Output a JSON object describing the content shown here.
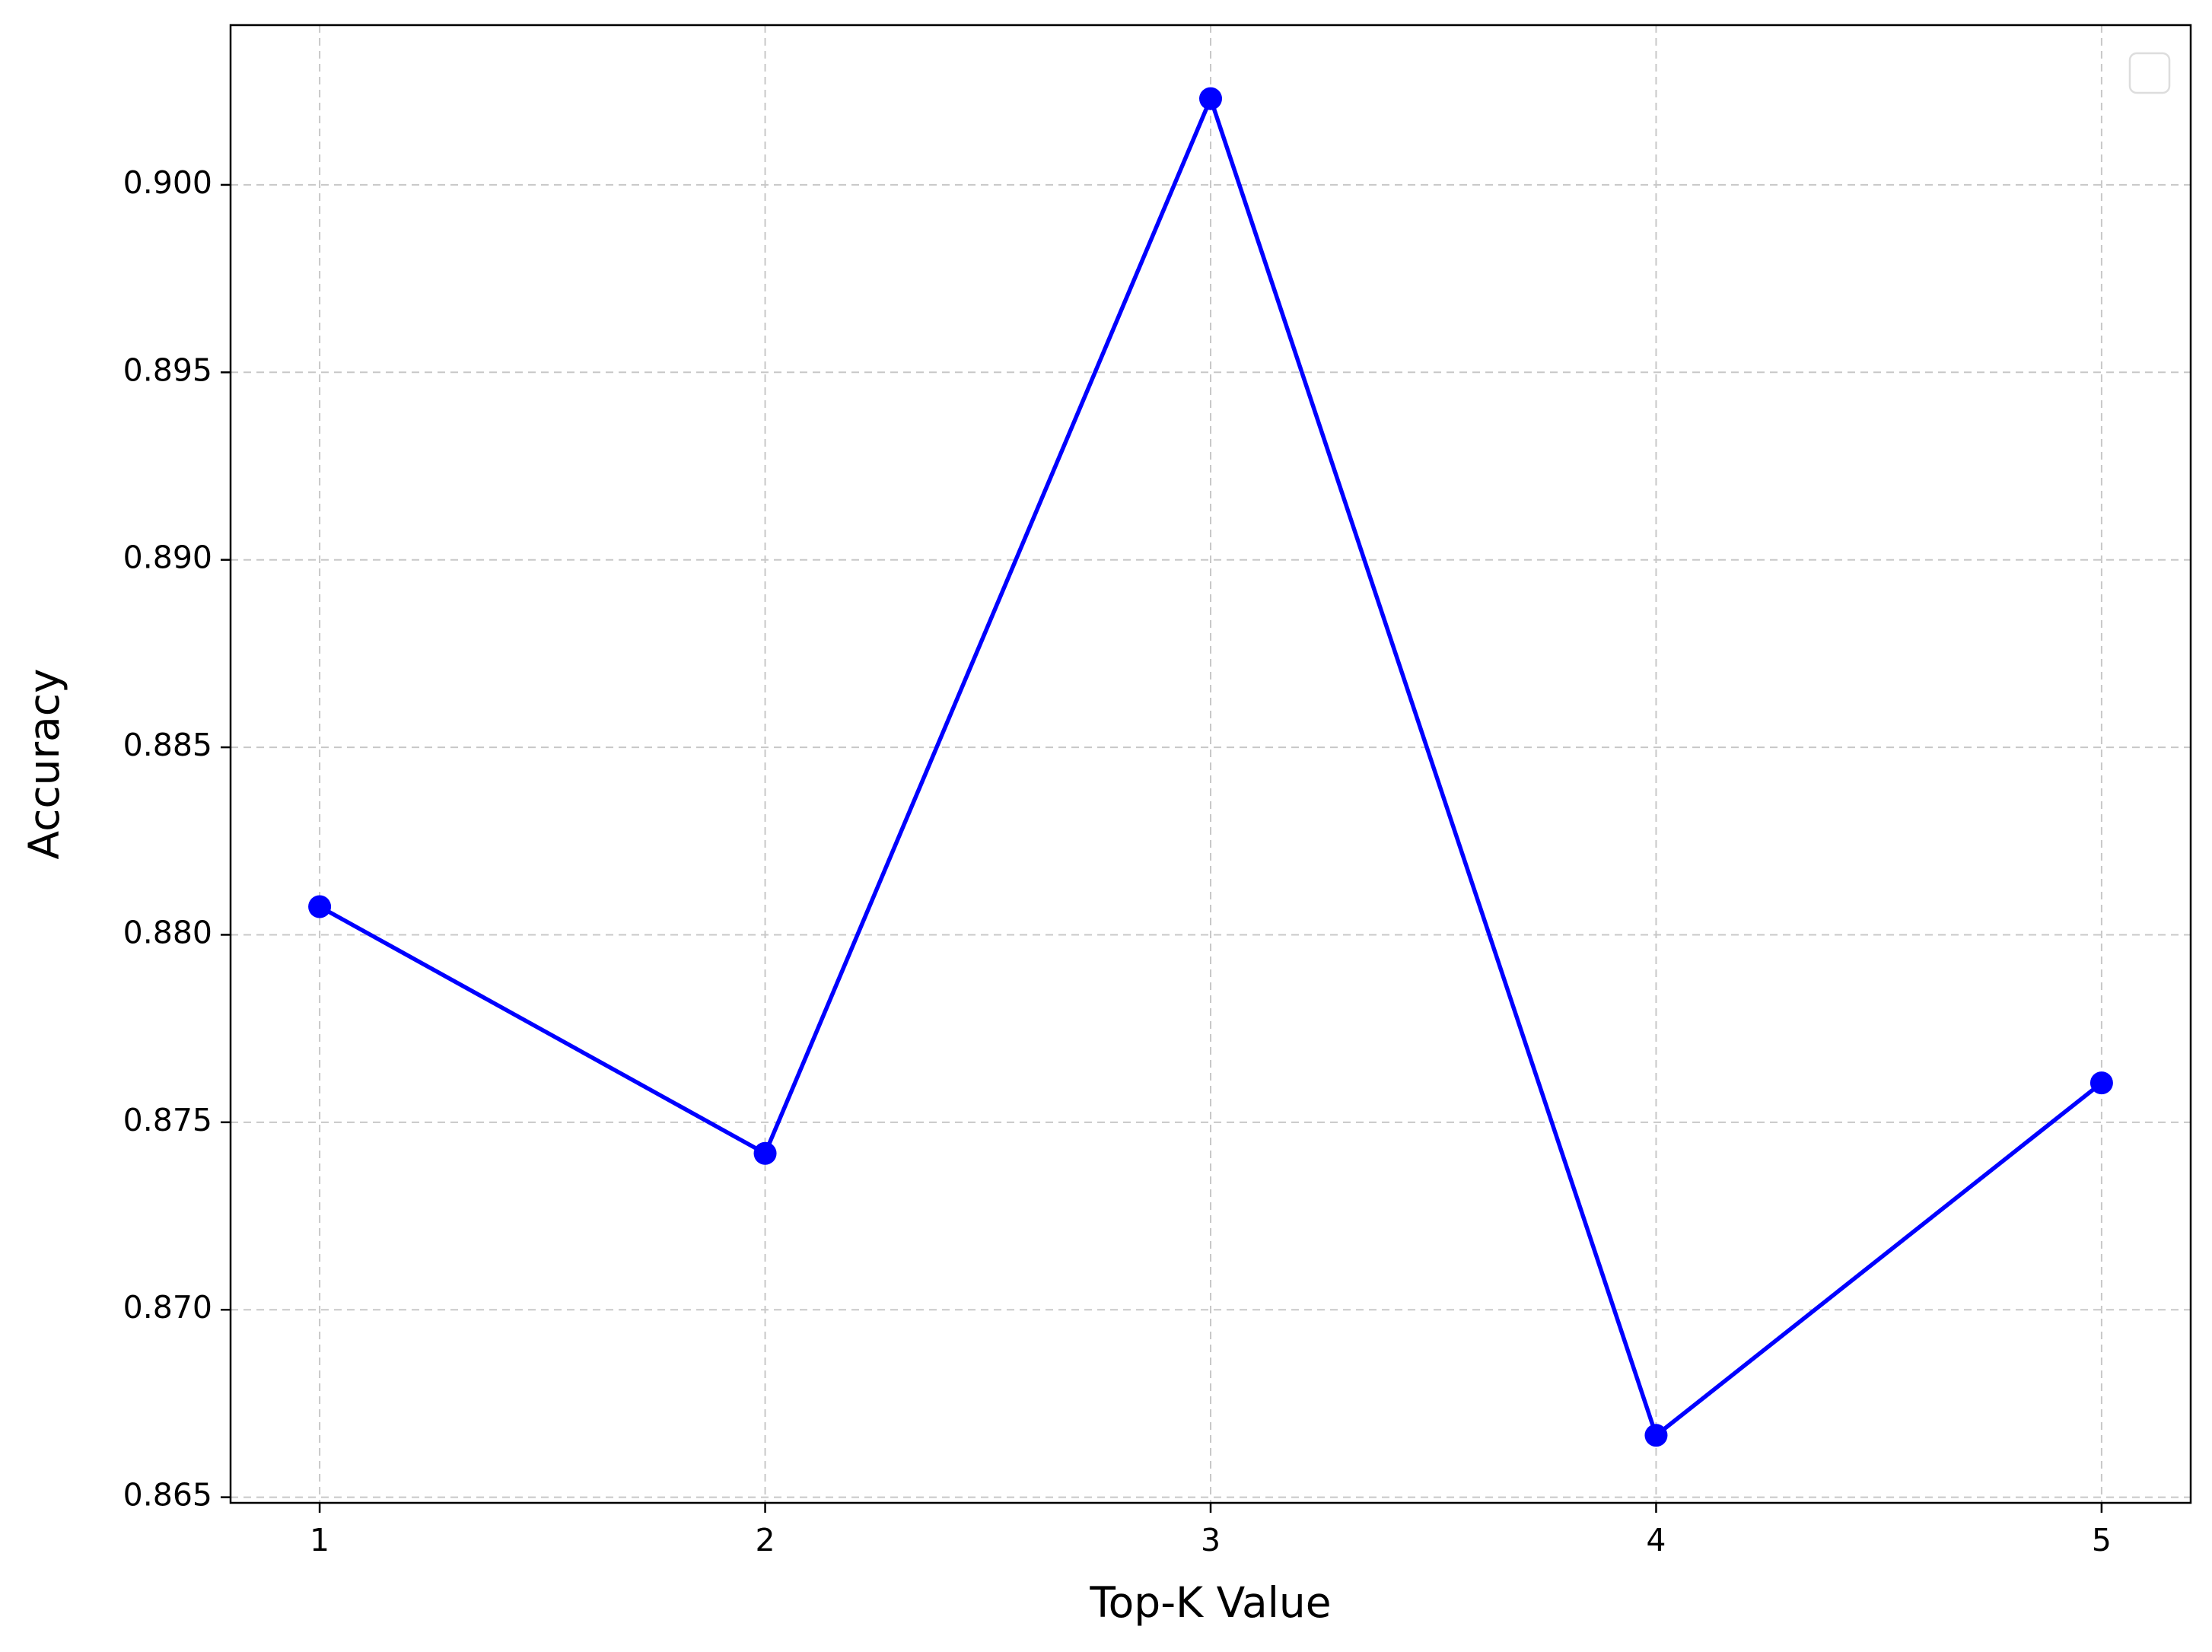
{
  "chart_data": {
    "type": "line",
    "xlabel": "Top-K Value",
    "ylabel": "Accuracy",
    "x": [
      1,
      2,
      3,
      4,
      5
    ],
    "series": [
      {
        "color": "#0000ff",
        "values": [
          0.88075,
          0.87417,
          0.9023,
          0.86665,
          0.87605
        ]
      }
    ],
    "xlim": [
      0.8,
      5.2
    ],
    "xticks": [
      1,
      2,
      3,
      4,
      5
    ],
    "ylim": [
      0.86485,
      0.90426
    ],
    "yticks": [
      0.865,
      {
        "value": 0.87,
        "label": "0.870"
      },
      0.875,
      {
        "value": 0.88,
        "label": "0.880"
      },
      0.885,
      {
        "value": 0.89,
        "label": "0.890"
      },
      0.895,
      {
        "value": 0.9,
        "label": "0.900"
      }
    ],
    "grid": true
  }
}
